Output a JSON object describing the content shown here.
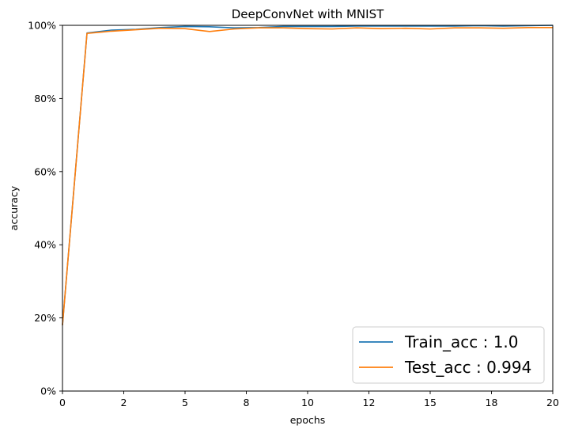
{
  "chart_data": {
    "type": "line",
    "title": "DeepConvNet with MNIST",
    "xlabel": "epochs",
    "ylabel": "accuracy",
    "xlim": [
      0,
      20
    ],
    "ylim": [
      0,
      100
    ],
    "x_ticks": [
      0,
      2.5,
      5,
      7.5,
      10,
      12.5,
      15,
      17.5,
      20
    ],
    "x_tick_labels": [
      "0",
      "2",
      "5",
      "8",
      "10",
      "12",
      "15",
      "18",
      "20"
    ],
    "y_ticks": [
      0,
      20,
      40,
      60,
      80,
      100
    ],
    "y_tick_labels": [
      "0%",
      "20%",
      "40%",
      "60%",
      "80%",
      "100%"
    ],
    "grid": false,
    "legend_position": "lower-right",
    "series": [
      {
        "name": "Train_acc : 1.0",
        "color": "#1f77b4",
        "x": [
          0,
          1,
          2,
          3,
          4,
          5,
          6,
          7,
          8,
          9,
          10,
          11,
          12,
          13,
          14,
          15,
          16,
          17,
          18,
          19,
          20
        ],
        "values": [
          18.0,
          97.9,
          98.7,
          98.9,
          99.4,
          99.7,
          99.6,
          99.3,
          99.4,
          99.7,
          99.7,
          99.7,
          99.8,
          99.8,
          99.8,
          99.8,
          99.8,
          99.9,
          99.8,
          99.9,
          100.0
        ]
      },
      {
        "name": "Test_acc : 0.994",
        "color": "#ff7f0e",
        "x": [
          0,
          1,
          2,
          3,
          4,
          5,
          6,
          7,
          8,
          9,
          10,
          11,
          12,
          13,
          14,
          15,
          16,
          17,
          18,
          19,
          20
        ],
        "values": [
          18.0,
          97.8,
          98.4,
          98.8,
          99.2,
          99.1,
          98.3,
          99.0,
          99.3,
          99.3,
          99.1,
          99.0,
          99.3,
          99.1,
          99.2,
          99.0,
          99.3,
          99.3,
          99.2,
          99.4,
          99.4
        ]
      }
    ]
  }
}
